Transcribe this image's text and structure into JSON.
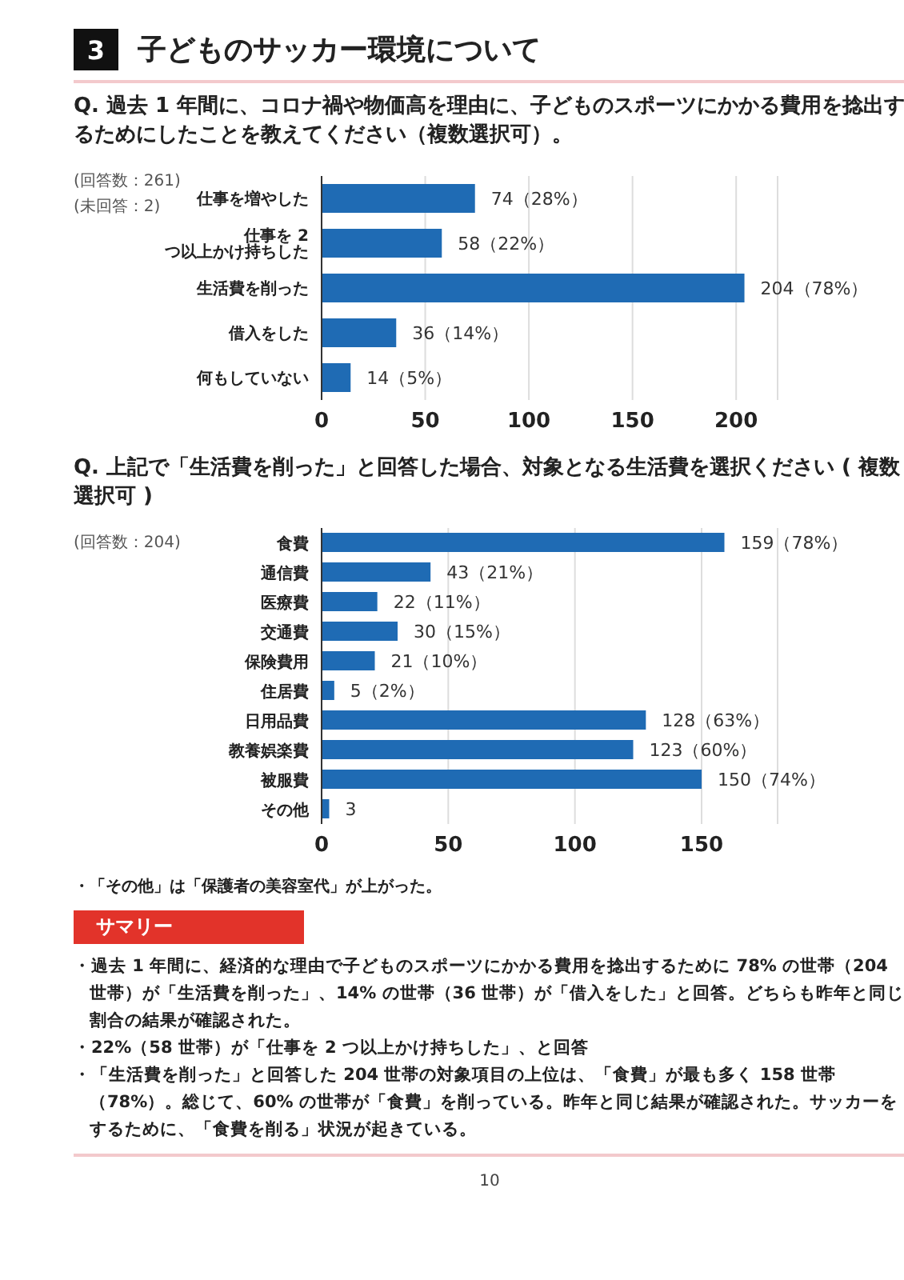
{
  "chart_data": [
    {
      "type": "bar",
      "orientation": "horizontal",
      "title": "Q. 過去 1 年間に、コロナ禍や物価高を理由に、子どものスポーツにかかる費用を捻出するためにしたことを教えてください（複数選択可）。",
      "annotations": [
        "3",
        "子どものサッカー環境について",
        "(回答数：261)",
        "(未回答：2)"
      ],
      "categories": [
        "仕事を増やした",
        "仕事を 2 つ以上かけ持ちした",
        "生活費を削った",
        "借入をした",
        "何もしていない"
      ],
      "values": [
        74,
        58,
        204,
        36,
        14
      ],
      "value_labels": [
        "74（28%）",
        "58（22%）",
        "204（78%）",
        "36（14%）",
        "14（5%）"
      ],
      "color": "#1f6bb4",
      "xlim": [
        0,
        220
      ],
      "xticks": [
        0,
        50,
        100,
        150,
        200
      ],
      "grid": "x",
      "legend": false
    },
    {
      "type": "bar",
      "orientation": "horizontal",
      "title": "Q. 上記で「生活費を削った」と回答した場合、対象となる生活費を選択ください ( 複数選択可 )",
      "annotations": [
        "(回答数：204)",
        "・「その他」は「保護者の美容室代」が上がった。",
        "サマリー",
        "・過去 1 年間に、経済的な理由で子どものスポーツにかかる費用を捻出するために 78% の世帯（204 世帯）が「生活費を削った」、14% の世帯（36 世帯）が「借入をした」と回答。どちらも昨年と同じ割合の結果が確認された。",
        "・22%（58 世帯）が「仕事を 2 つ以上かけ持ちした」、と回答",
        "・「生活費を削った」と回答した 204 世帯の対象項目の上位は、「食費」が最も多く 158 世帯（78%）。総じて、60% の世帯が「食費」を削っている。昨年と同じ結果が確認された。サッカーをするために、「食費を削る」状況が起きている。",
        "10"
      ],
      "categories": [
        "食費",
        "通信費",
        "医療費",
        "交通費",
        "保険費用",
        "住居費",
        "日用品費",
        "教養娯楽費",
        "被服費",
        "その他"
      ],
      "values": [
        159,
        43,
        22,
        30,
        21,
        5,
        128,
        123,
        150,
        3
      ],
      "value_labels": [
        "159（78%）",
        "43（21%）",
        "22（11%）",
        "30（15%）",
        "21（10%）",
        "5（2%）",
        "128（63%）",
        "123（60%）",
        "150（74%）",
        "3"
      ],
      "color": "#1f6bb4",
      "xlim": [
        0,
        180
      ],
      "xticks": [
        0,
        50,
        100,
        150
      ],
      "grid": "x",
      "legend": false
    }
  ]
}
